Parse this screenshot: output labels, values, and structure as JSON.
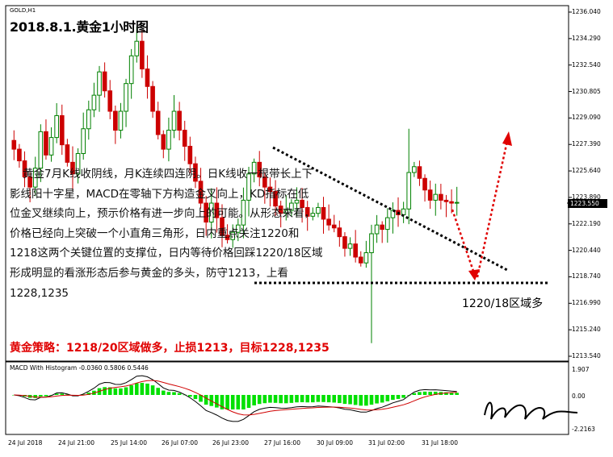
{
  "chart": {
    "symbol": "GOLD,H1",
    "title": "2018.8.1.黄金1小时图",
    "analysis_lines": [
      "黄金7月K线收阴线，月K连续四连阴。日K线收一根带长上下",
      "影线阳十字星，MACD在零轴下方构造金叉向上，KD指标在低",
      "位金叉继续向上，预示价格有进一步向上的可能。从形态来看，",
      "价格已经向上突破一个小直角三角形，日内重点关注1220和",
      "1218这两个关键位置的支撑位，日内等待价格回踩1220/18区域",
      "形成明显的看涨形态后参与黄金的多头，防守1213，上看",
      "1228,1235"
    ],
    "strategy": "黄金策略：1218/20区域做多，止损1213，目标1228,1235",
    "zone_label": "1220/18区域多",
    "price_tag": "1223.550",
    "colors": {
      "bull": "#008000",
      "bear": "#cc0000",
      "arrow": "#e00000",
      "trend_line": "#000000",
      "hist": "#00e000",
      "signal": "#d00000",
      "macd": "#000000"
    }
  },
  "macd": {
    "label": "MACD With Histogram -0.0360 0.5806 0.5446",
    "ticks": [
      "1.907",
      "0.00",
      "-2.2163"
    ]
  },
  "chart_data": {
    "type": "candlestick",
    "title": "2018.8.1.黄金1小时图",
    "y_ticks": [
      "1236.040",
      "1234.290",
      "1232.540",
      "1230.805",
      "1229.090",
      "1227.390",
      "1225.640",
      "1223.890",
      "1222.190",
      "1220.440",
      "1218.740",
      "1216.990",
      "1215.240",
      "1213.540"
    ],
    "ylim": [
      1213.0,
      1236.6
    ],
    "x_ticks": [
      "24 Jul 2018",
      "24 Jul 21:00",
      "25 Jul 14:00",
      "26 Jul 07:00",
      "26 Jul 23:00",
      "27 Jul 16:00",
      "30 Jul 09:00",
      "31 Jul 02:00",
      "31 Jul 18:00"
    ],
    "series": [
      {
        "name": "GOLD,H1",
        "values": [
          1227.2,
          1226.4,
          1225.3,
          1224.6,
          1225.9,
          1228.4,
          1226.8,
          1228.0,
          1229.5,
          1227.5,
          1226.3,
          1225.5,
          1226.9,
          1228.6,
          1229.9,
          1230.9,
          1232.5,
          1231.2,
          1229.8,
          1228.5,
          1229.8,
          1231.7,
          1233.6,
          1234.6,
          1232.7,
          1231.5,
          1229.8,
          1228.2,
          1227.2,
          1228.5,
          1229.8,
          1228.5,
          1227.4,
          1226.2,
          1225.0,
          1223.5,
          1222.2,
          1223.5,
          1222.5,
          1221.3,
          1221.0,
          1221.5,
          1222.0,
          1223.7,
          1225.5,
          1226.3,
          1225.3,
          1224.6,
          1224.3,
          1223.3,
          1222.8,
          1223.0,
          1223.5,
          1223.7,
          1223.2,
          1222.6,
          1222.8,
          1223.2,
          1222.4,
          1222.0,
          1221.8,
          1221.2,
          1220.4,
          1220.7,
          1219.8,
          1219.4,
          1220.1,
          1221.4,
          1222.0,
          1221.7,
          1222.5,
          1223.0,
          1222.7,
          1223.1,
          1225.6,
          1226.0,
          1225.2,
          1224.4,
          1223.7,
          1224.1,
          1223.7,
          1223.6,
          1223.5,
          1223.55
        ]
      }
    ],
    "annotations": [
      "1220/18区域多"
    ]
  }
}
